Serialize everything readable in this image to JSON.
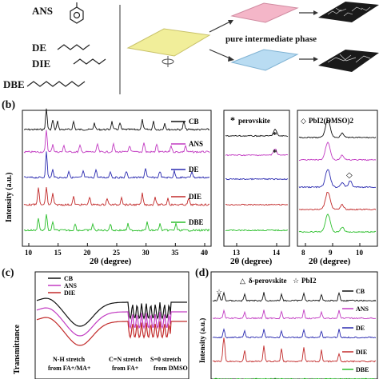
{
  "panel_a": {
    "solvents": [
      "ANS",
      "DE",
      "DIE",
      "DBE"
    ],
    "middle_label": "pure intermediate phase",
    "colors": {
      "pink": "#f4b6c8",
      "yellow": "#f1ee9a",
      "blue": "#b9dcf2",
      "dark": "#1a1a1a"
    }
  },
  "panel_b": {
    "label": "(b)",
    "ylabel": "Intensity (a.u.)",
    "xlabel": "2θ (degree)",
    "series": [
      {
        "name": "CB",
        "color": "#111111"
      },
      {
        "name": "ANS",
        "color": "#c23bc2"
      },
      {
        "name": "DE",
        "color": "#2a2ab0"
      },
      {
        "name": "DIE",
        "color": "#c22a2a"
      },
      {
        "name": "DBE",
        "color": "#2bbf2b"
      }
    ],
    "main_ticks": [
      "10",
      "15",
      "20",
      "25",
      "30",
      "35",
      "40"
    ],
    "zoom1": {
      "legend": "perovskite",
      "marker": "*",
      "ticks": [
        "13",
        "14"
      ]
    },
    "zoom2": {
      "legend": "PbI2(DMSO)2",
      "marker": "◇",
      "ticks": [
        "8",
        "9",
        "10"
      ]
    }
  },
  "panel_c": {
    "label": "(c)",
    "ylabel": "Transmittance",
    "legend": [
      {
        "name": "CB",
        "color": "#111111"
      },
      {
        "name": "ANS",
        "color": "#c23bc2"
      },
      {
        "name": "DIE",
        "color": "#c22a2a"
      }
    ],
    "annotations": [
      {
        "line1": "N-H stretch",
        "line2": "from FA+/MA+"
      },
      {
        "line1": "C=N stretch",
        "line2": "from FA+"
      },
      {
        "line1": "S=0 stretch",
        "line2": "from DMSO"
      }
    ]
  },
  "panel_d": {
    "label": "(d)",
    "ylabel": "Intensity (a.u.)",
    "legend1": "δ-perovskite",
    "legend2": "PbI2",
    "legend1_marker": "△",
    "legend2_marker": "☆",
    "series": [
      {
        "name": "CB",
        "color": "#111111"
      },
      {
        "name": "ANS",
        "color": "#c23bc2"
      },
      {
        "name": "DE",
        "color": "#2a2ab0"
      },
      {
        "name": "DIE",
        "color": "#c22a2a"
      },
      {
        "name": "DBE",
        "color": "#2bbf2b"
      }
    ]
  }
}
